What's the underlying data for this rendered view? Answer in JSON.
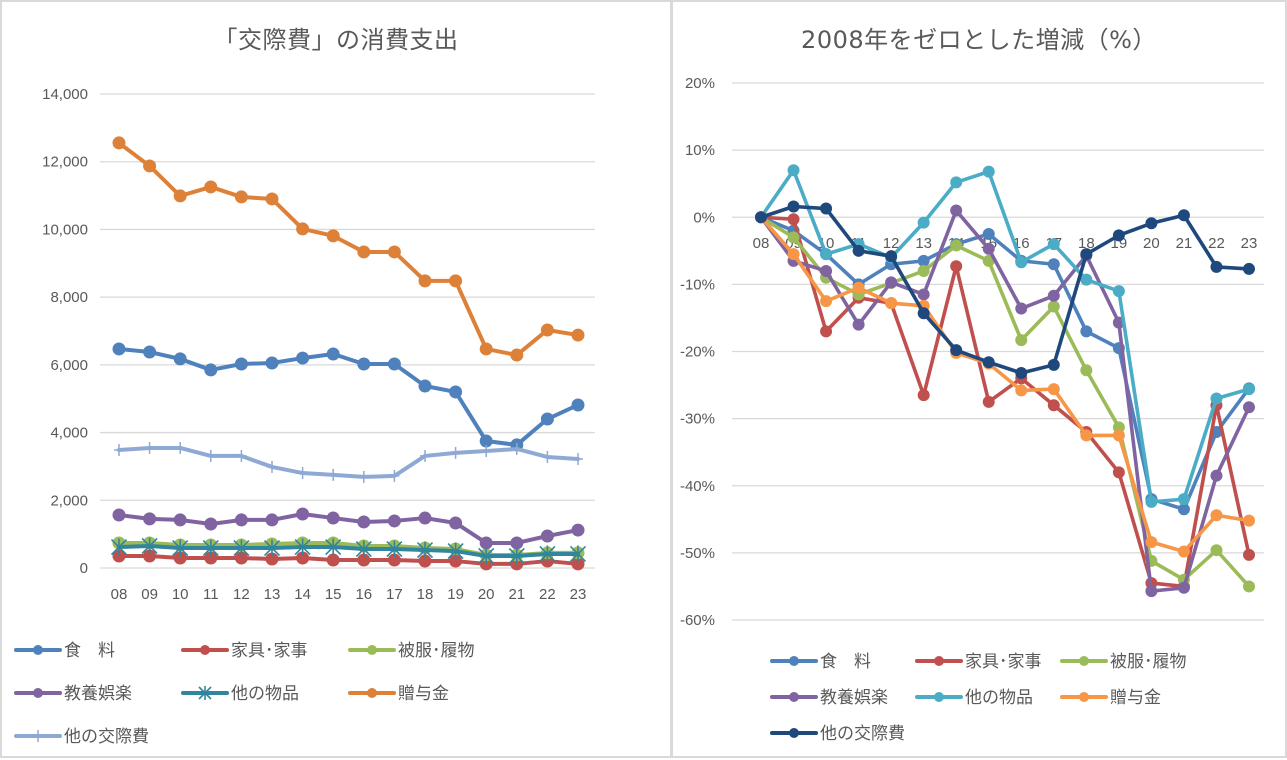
{
  "chart_data": [
    {
      "type": "line",
      "title": "「交際費」の消費支出",
      "xlabel": "",
      "ylabel": "",
      "categories": [
        "08",
        "09",
        "10",
        "11",
        "12",
        "13",
        "14",
        "15",
        "16",
        "17",
        "18",
        "19",
        "20",
        "21",
        "22",
        "23"
      ],
      "ylim": [
        0,
        14000
      ],
      "yticks": [
        0,
        2000,
        4000,
        6000,
        8000,
        10000,
        12000,
        14000
      ],
      "ytick_labels": [
        "0",
        "2,000",
        "4,000",
        "6,000",
        "8,000",
        "10,000",
        "12,000",
        "14,000"
      ],
      "grid": true,
      "legend_position": "bottom",
      "series": [
        {
          "name": "食　料",
          "color": "#4f81bd",
          "marker": "circle",
          "values": [
            6470,
            6380,
            6175,
            5850,
            6025,
            6055,
            6200,
            6320,
            6025,
            6025,
            5375,
            5200,
            3750,
            3635,
            4400,
            4815
          ]
        },
        {
          "name": "家具･家事",
          "color": "#c0504d",
          "marker": "circle",
          "values": [
            355,
            355,
            295,
            295,
            295,
            265,
            295,
            235,
            235,
            235,
            205,
            205,
            120,
            120,
            205,
            120
          ]
        },
        {
          "name": "被服･履物",
          "color": "#9bbb59",
          "marker": "circle",
          "values": [
            740,
            740,
            680,
            680,
            680,
            710,
            740,
            740,
            650,
            650,
            590,
            560,
            385,
            385,
            445,
            445
          ]
        },
        {
          "name": "教養娯楽",
          "color": "#8064a2",
          "marker": "circle",
          "values": [
            1565,
            1450,
            1420,
            1300,
            1420,
            1420,
            1595,
            1475,
            1360,
            1390,
            1475,
            1330,
            740,
            740,
            945,
            1120
          ]
        },
        {
          "name": "他の物品",
          "color": "#31859c",
          "marker": "star",
          "values": [
            620,
            650,
            590,
            590,
            590,
            590,
            620,
            620,
            560,
            560,
            530,
            500,
            355,
            355,
            415,
            415
          ]
        },
        {
          "name": "贈与金",
          "color": "#dd8139",
          "marker": "circle",
          "values": [
            12555,
            11875,
            10990,
            11255,
            10960,
            10900,
            10015,
            9810,
            9335,
            9335,
            8480,
            8480,
            6470,
            6290,
            7030,
            6880
          ]
        },
        {
          "name": "他の交際費",
          "color": "#8ea9d4",
          "marker": "plus",
          "values": [
            3485,
            3545,
            3545,
            3310,
            3310,
            2985,
            2805,
            2750,
            2690,
            2720,
            3310,
            3400,
            3455,
            3515,
            3280,
            3220
          ]
        }
      ]
    },
    {
      "type": "line",
      "title": "2008年をゼロとした増減（%）",
      "xlabel": "",
      "ylabel": "",
      "categories": [
        "08",
        "09",
        "10",
        "11",
        "12",
        "13",
        "14",
        "15",
        "16",
        "17",
        "18",
        "19",
        "20",
        "21",
        "22",
        "23"
      ],
      "ylim": [
        -60,
        20
      ],
      "yticks": [
        -60,
        -50,
        -40,
        -30,
        -20,
        -10,
        0,
        10,
        20
      ],
      "ytick_labels": [
        "-60%",
        "-50%",
        "-40%",
        "-30%",
        "-20%",
        "-10%",
        "0%",
        "10%",
        "20%"
      ],
      "grid": true,
      "legend_position": "bottom",
      "series": [
        {
          "name": "食　料",
          "color": "#4f81bd",
          "marker": "circle",
          "values": [
            0,
            -2,
            -5.5,
            -10,
            -7,
            -6.5,
            -4,
            -2.5,
            -6.5,
            -7,
            -17,
            -19.5,
            -42,
            -43.5,
            -32,
            -25.5
          ]
        },
        {
          "name": "家具･家事",
          "color": "#c0504d",
          "marker": "circle",
          "values": [
            0,
            -0.3,
            -17,
            -12,
            -12.8,
            -26.5,
            -7.3,
            -27.5,
            -24,
            -28,
            -32,
            -38,
            -54.5,
            -55,
            -28,
            -50.3
          ]
        },
        {
          "name": "被服･履物",
          "color": "#9bbb59",
          "marker": "circle",
          "values": [
            0,
            -3,
            -9,
            -11.5,
            -9.8,
            -8,
            -4.2,
            -6.5,
            -18.3,
            -13.3,
            -22.8,
            -31.3,
            -51.2,
            -54,
            -49.6,
            -55
          ]
        },
        {
          "name": "教養娯楽",
          "color": "#8064a2",
          "marker": "circle",
          "values": [
            0,
            -6.5,
            -8,
            -16,
            -9.7,
            -11.5,
            1,
            -4.7,
            -13.6,
            -11.7,
            -5.7,
            -15.7,
            -55.7,
            -55.2,
            -38.5,
            -28.3
          ]
        },
        {
          "name": "他の物品",
          "color": "#4bacc6",
          "marker": "circle",
          "values": [
            0,
            7,
            -5.5,
            -4,
            -6,
            -0.8,
            5.2,
            6.8,
            -6.7,
            -4,
            -9.3,
            -11,
            -42.4,
            -42,
            -27,
            -25.6
          ]
        },
        {
          "name": "贈与金",
          "color": "#f79646",
          "marker": "circle",
          "values": [
            0,
            -5.5,
            -12.5,
            -10.5,
            -12.8,
            -13.2,
            -20.2,
            -21.8,
            -25.8,
            -25.6,
            -32.5,
            -32.5,
            -48.4,
            -49.8,
            -44.4,
            -45.2
          ]
        },
        {
          "name": "他の交際費",
          "color": "#1f497d",
          "marker": "circle",
          "values": [
            0,
            1.6,
            1.3,
            -5,
            -5.8,
            -14.3,
            -19.8,
            -21.6,
            -23.2,
            -22,
            -5.5,
            -2.7,
            -0.9,
            0.3,
            -7.4,
            -7.7
          ]
        }
      ]
    }
  ]
}
